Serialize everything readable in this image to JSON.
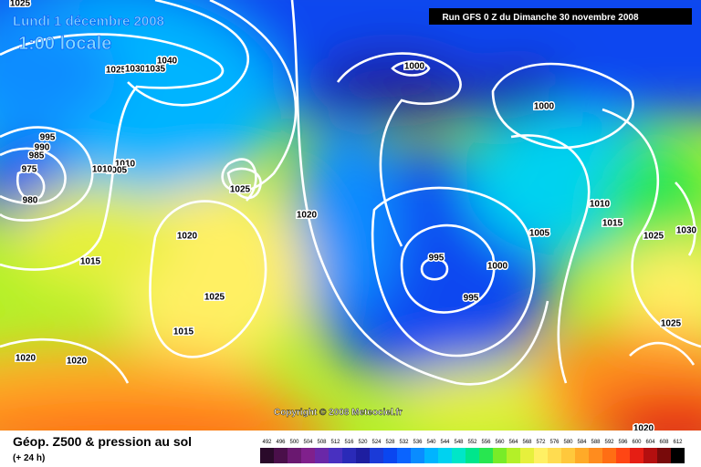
{
  "header": {
    "date": "Lundi 1 décembre 2008",
    "time": "1:00 locale",
    "run": "Run GFS 0 Z du Dimanche 30 novembre 2008"
  },
  "copyright": "Copyright © 2008 Meteociel.fr",
  "footer": {
    "title": "Géop. Z500 & pression au sol",
    "subtitle": "(+ 24 h)"
  },
  "isobar_labels": [
    1025,
    1040,
    1025,
    1030,
    1035,
    995,
    990,
    985,
    975,
    980,
    1010,
    1005,
    1010,
    1025,
    1020,
    1020,
    1015,
    1025,
    1015,
    1020,
    1020,
    1000,
    1000,
    1010,
    1015,
    1005,
    1025,
    1030,
    995,
    1000,
    995,
    1025,
    1020
  ],
  "legend": {
    "values": [
      492,
      496,
      500,
      504,
      508,
      512,
      516,
      520,
      524,
      528,
      532,
      536,
      540,
      544,
      548,
      552,
      556,
      560,
      564,
      568,
      572,
      576,
      580,
      584,
      588,
      592,
      596,
      600,
      604,
      608,
      612
    ],
    "colors": [
      "#2a0a2a",
      "#4a0f4a",
      "#6a1870",
      "#80208c",
      "#6a28a8",
      "#4830c0",
      "#2a2ab8",
      "#1e1ea0",
      "#1a3ad8",
      "#0a46f0",
      "#0a64ff",
      "#0a8cff",
      "#00b4ff",
      "#00d2f0",
      "#00e6c8",
      "#00e68c",
      "#28e650",
      "#78ec28",
      "#b4f028",
      "#e6f03c",
      "#fff064",
      "#ffdc50",
      "#ffc83c",
      "#ffaa28",
      "#ff8c1e",
      "#ff6e14",
      "#ff4614",
      "#e61e14",
      "#b40f0f",
      "#780a0a",
      "#000000"
    ]
  }
}
